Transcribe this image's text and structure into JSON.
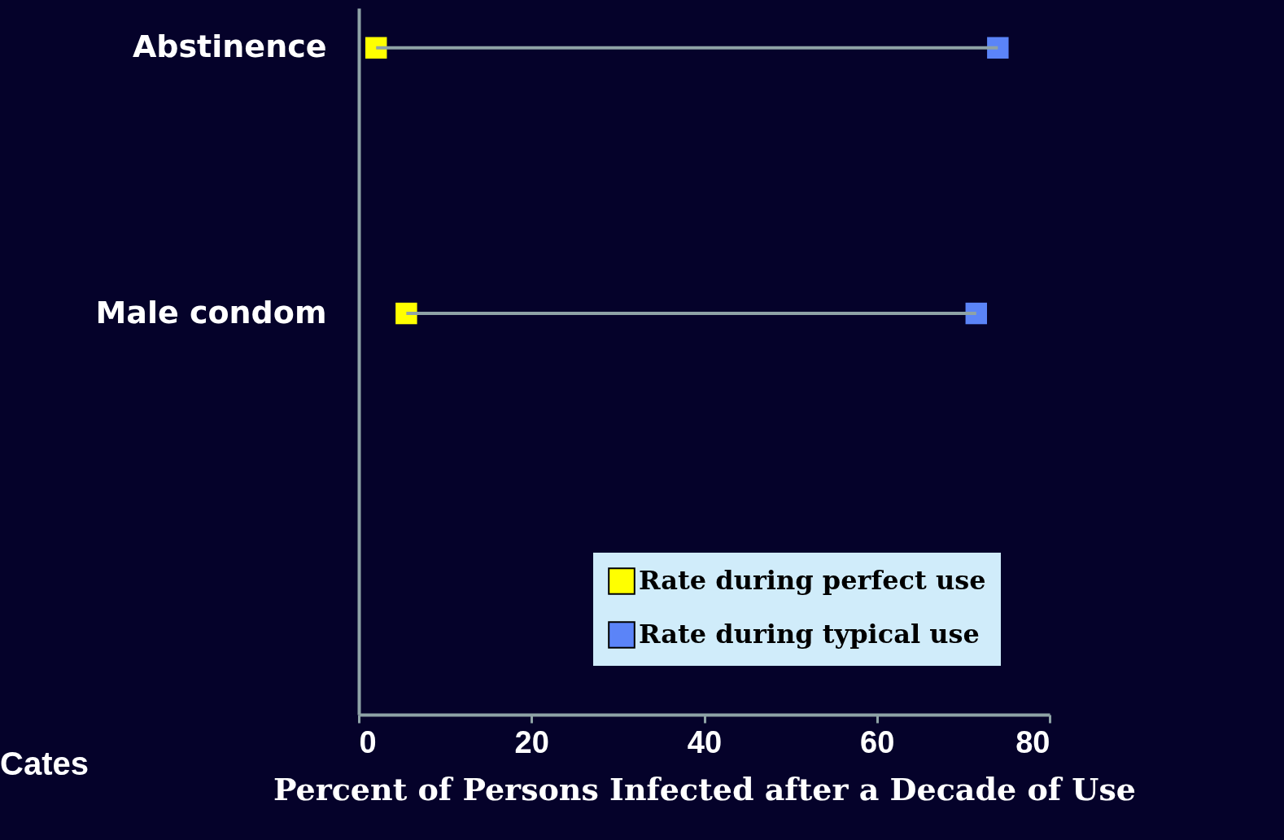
{
  "chart_data": {
    "type": "scatter",
    "orientation": "horizontal",
    "categories": [
      "Abstinence",
      "Male condom"
    ],
    "series": [
      {
        "name": "Rate during perfect use",
        "color": "#ffff00",
        "values": [
          2,
          5.5
        ]
      },
      {
        "name": "Rate during typical use",
        "color": "#5b84f8",
        "values": [
          74,
          71.5
        ]
      }
    ],
    "xlabel": "Percent of Persons Infected after a Decade of Use",
    "xlim": [
      0,
      80
    ],
    "xticks": [
      0,
      20,
      40,
      60,
      80
    ],
    "marker": "square",
    "legend": "bottom right",
    "annotations": [
      "Cates"
    ]
  }
}
